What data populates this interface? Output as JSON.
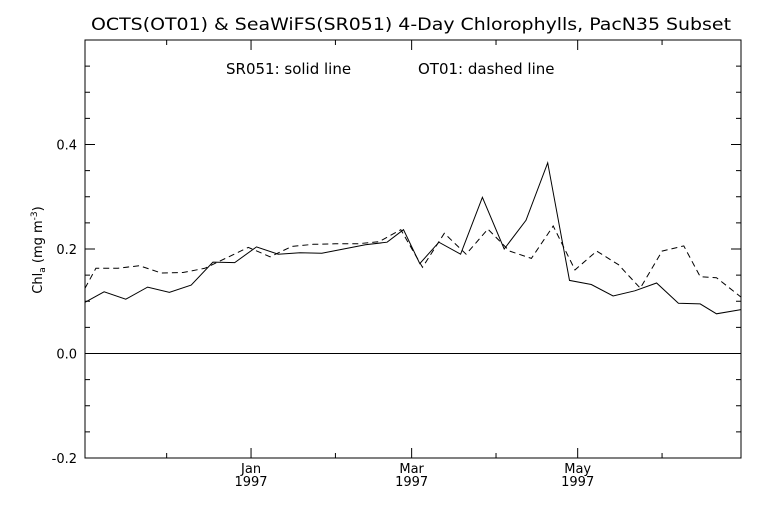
{
  "chart_data": {
    "type": "line",
    "title": "OCTS(OT01) & SeaWiFS(SR051) 4-Day Chlorophylls, PacN35 Subset",
    "annotation_series": "SR051: solid line",
    "annotation_dashed": "OT01: dashed line",
    "ylabel_main": "Chl",
    "ylabel_sub": "a",
    "ylabel_units": " (mg m",
    "ylabel_exp": "-3",
    "ylabel_close": ")",
    "xlim": [
      "1996-11-01",
      "1997-06-30"
    ],
    "ylim": [
      -0.2,
      0.6
    ],
    "yticks": [
      -0.2,
      0.0,
      0.2,
      0.4
    ],
    "yticklabels": [
      "-0.2",
      "0.0",
      "0.2",
      "0.4"
    ],
    "xticks_major": [
      {
        "date": "1997-01-01",
        "label": "Jan",
        "year": "1997"
      },
      {
        "date": "1997-03-01",
        "label": "Mar",
        "year": "1997"
      },
      {
        "date": "1997-05-01",
        "label": "May",
        "year": "1997"
      }
    ],
    "xticks_minor": [
      "1996-12-01",
      "1997-02-01",
      "1997-04-01",
      "1997-06-01"
    ],
    "zero_line": true,
    "grid": false,
    "x": [
      "1996-11-01",
      "1996-11-05",
      "1996-11-09",
      "1996-11-13",
      "1996-11-17",
      "1996-11-21",
      "1996-11-25",
      "1996-11-29",
      "1996-12-03",
      "1996-12-07",
      "1996-12-11",
      "1996-12-15",
      "1996-12-19",
      "1996-12-23",
      "1996-12-27",
      "1996-12-31",
      "1997-01-04",
      "1997-01-08",
      "1997-01-12",
      "1997-01-16",
      "1997-01-20",
      "1997-01-24",
      "1997-01-28",
      "1997-02-01",
      "1997-02-05",
      "1997-02-09",
      "1997-02-13",
      "1997-02-17",
      "1997-02-21",
      "1997-02-25",
      "1997-03-01",
      "1997-03-05",
      "1997-03-09",
      "1997-03-13",
      "1997-03-17",
      "1997-03-21",
      "1997-03-25",
      "1997-03-29",
      "1997-04-02",
      "1997-04-06",
      "1997-04-10",
      "1997-04-14",
      "1997-04-18",
      "1997-04-22",
      "1997-04-26",
      "1997-04-30",
      "1997-05-04",
      "1997-05-08",
      "1997-05-12",
      "1997-05-16",
      "1997-05-20",
      "1997-05-24",
      "1997-05-28",
      "1997-06-01",
      "1997-06-05",
      "1997-06-09",
      "1997-06-13",
      "1997-06-17",
      "1997-06-21",
      "1997-06-25",
      "1997-06-29"
    ],
    "series": [
      {
        "name": "SR051",
        "style": "solid",
        "color": "#000000",
        "points": [
          [
            "1996-11-01",
            0.098
          ],
          [
            "1996-11-08",
            0.118
          ],
          [
            "1996-11-16",
            0.104
          ],
          [
            "1996-11-24",
            0.127
          ],
          [
            "1996-12-02",
            0.117
          ],
          [
            "1996-12-10",
            0.131
          ],
          [
            "1996-12-18",
            0.175
          ],
          [
            "1996-12-26",
            0.174
          ],
          [
            "1997-01-03",
            0.204
          ],
          [
            "1997-01-11",
            0.19
          ],
          [
            "1997-01-19",
            0.193
          ],
          [
            "1997-01-27",
            0.192
          ],
          [
            "1997-02-04",
            0.2
          ],
          [
            "1997-02-12",
            0.208
          ],
          [
            "1997-02-20",
            0.213
          ],
          [
            "1997-02-26",
            0.237
          ],
          [
            "1997-03-04",
            0.172
          ],
          [
            "1997-03-11",
            0.213
          ],
          [
            "1997-03-19",
            0.19
          ],
          [
            "1997-03-27",
            0.299
          ],
          [
            "1997-04-04",
            0.2
          ],
          [
            "1997-04-12",
            0.255
          ],
          [
            "1997-04-20",
            0.365
          ],
          [
            "1997-04-28",
            0.14
          ],
          [
            "1997-05-06",
            0.132
          ],
          [
            "1997-05-14",
            0.11
          ],
          [
            "1997-05-22",
            0.12
          ],
          [
            "1997-05-30",
            0.135
          ],
          [
            "1997-06-07",
            0.096
          ],
          [
            "1997-06-15",
            0.095
          ],
          [
            "1997-06-21",
            0.076
          ],
          [
            "1997-06-30",
            0.084
          ]
        ]
      },
      {
        "name": "OT01",
        "style": "dashed",
        "color": "#000000",
        "points": [
          [
            "1996-11-01",
            0.125
          ],
          [
            "1996-11-05",
            0.163
          ],
          [
            "1996-11-13",
            0.163
          ],
          [
            "1996-11-21",
            0.168
          ],
          [
            "1996-11-29",
            0.154
          ],
          [
            "1996-12-07",
            0.155
          ],
          [
            "1996-12-15",
            0.163
          ],
          [
            "1996-12-23",
            0.183
          ],
          [
            "1996-12-31",
            0.203
          ],
          [
            "1997-01-08",
            0.185
          ],
          [
            "1997-01-16",
            0.205
          ],
          [
            "1997-01-24",
            0.209
          ],
          [
            "1997-02-01",
            0.21
          ],
          [
            "1997-02-09",
            0.21
          ],
          [
            "1997-02-17",
            0.214
          ],
          [
            "1997-02-25",
            0.237
          ],
          [
            "1997-03-05",
            0.165
          ],
          [
            "1997-03-13",
            0.23
          ],
          [
            "1997-03-21",
            0.19
          ],
          [
            "1997-03-29",
            0.238
          ],
          [
            "1997-04-06",
            0.196
          ],
          [
            "1997-04-14",
            0.182
          ],
          [
            "1997-04-22",
            0.244
          ],
          [
            "1997-04-30",
            0.16
          ],
          [
            "1997-05-08",
            0.196
          ],
          [
            "1997-05-16",
            0.17
          ],
          [
            "1997-05-24",
            0.125
          ],
          [
            "1997-06-01",
            0.196
          ],
          [
            "1997-06-09",
            0.206
          ],
          [
            "1997-06-15",
            0.147
          ],
          [
            "1997-06-21",
            0.145
          ],
          [
            "1997-06-30",
            0.108
          ]
        ]
      }
    ]
  }
}
